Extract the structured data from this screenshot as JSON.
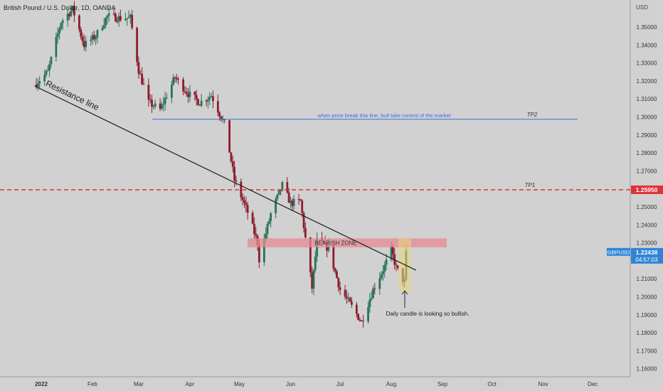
{
  "header": {
    "symbol_title": "British Pound / U.S. Dollar, 1D, OANDA",
    "currency_label": "USD"
  },
  "colors": {
    "up_candle": "#26735a",
    "down_candle": "#8c1c2c",
    "resistance_line": "#202020",
    "tp1_line": "#e0303a",
    "tp2_line": "#3a6fe0",
    "bearish_zone": "#e58a93",
    "highlight_box": "#e9d77a",
    "price_badge": "#2f84d8"
  },
  "price_tag": {
    "symbol": "GBPUSD",
    "price": "1.22438",
    "countdown": "04:57:03"
  },
  "tp1_tag": {
    "price": "1.25950"
  },
  "annotations": {
    "resistance_line_label": "Resistance line",
    "tp2_note": "when price break this line, bull take control of the market",
    "tp2_label": "TP2",
    "tp1_label": "TP1",
    "bearish_zone_label": "BEARISH ZONE",
    "candle_note": "Daily candle is looking so bullish."
  },
  "chart_data": {
    "type": "candlestick",
    "instrument": "GBPUSD",
    "timeframe": "1D",
    "source": "OANDA",
    "y_ticks": [
      "1.35000",
      "1.34000",
      "1.33000",
      "1.32000",
      "1.31000",
      "1.30000",
      "1.29000",
      "1.28000",
      "1.27000",
      "1.26000",
      "1.25000",
      "1.24000",
      "1.23000",
      "1.22000",
      "1.21000",
      "1.20000",
      "1.19000",
      "1.18000",
      "1.17000",
      "1.16000"
    ],
    "x_ticks": [
      "2022",
      "Feb",
      "Mar",
      "Apr",
      "May",
      "Jun",
      "Jul",
      "Aug",
      "Sep",
      "Oct",
      "Nov",
      "Dec"
    ],
    "ylim": [
      1.155,
      1.358
    ],
    "grid": false,
    "levels": {
      "tp1": 1.2595,
      "tp2": 1.2987,
      "bearish_zone": [
        1.2275,
        1.2325
      ],
      "last_price": 1.22438
    },
    "resistance_line": {
      "start": {
        "date": "2021-12-28",
        "price": 1.3172
      },
      "end": {
        "date": "2022-08-16",
        "price": 1.2148
      }
    },
    "price_path": [
      {
        "date": "2021-12-28",
        "price": 1.318
      },
      {
        "date": "2022-01-05",
        "price": 1.325
      },
      {
        "date": "2022-01-13",
        "price": 1.353
      },
      {
        "date": "2022-01-20",
        "price": 1.36
      },
      {
        "date": "2022-01-27",
        "price": 1.34
      },
      {
        "date": "2022-02-03",
        "price": 1.345
      },
      {
        "date": "2022-02-10",
        "price": 1.356
      },
      {
        "date": "2022-02-17",
        "price": 1.355
      },
      {
        "date": "2022-02-24",
        "price": 1.355
      },
      {
        "date": "2022-03-01",
        "price": 1.326
      },
      {
        "date": "2022-03-07",
        "price": 1.308
      },
      {
        "date": "2022-03-14",
        "price": 1.304
      },
      {
        "date": "2022-03-23",
        "price": 1.322
      },
      {
        "date": "2022-03-31",
        "price": 1.313
      },
      {
        "date": "2022-04-07",
        "price": 1.308
      },
      {
        "date": "2022-04-14",
        "price": 1.312
      },
      {
        "date": "2022-04-22",
        "price": 1.296
      },
      {
        "date": "2022-04-25",
        "price": 1.281
      },
      {
        "date": "2022-04-28",
        "price": 1.265
      },
      {
        "date": "2022-05-06",
        "price": 1.247
      },
      {
        "date": "2022-05-12",
        "price": 1.23
      },
      {
        "date": "2022-05-13",
        "price": 1.221
      },
      {
        "date": "2022-05-20",
        "price": 1.246
      },
      {
        "date": "2022-05-27",
        "price": 1.262
      },
      {
        "date": "2022-06-01",
        "price": 1.252
      },
      {
        "date": "2022-06-07",
        "price": 1.253
      },
      {
        "date": "2022-06-14",
        "price": 1.205
      },
      {
        "date": "2022-06-17",
        "price": 1.231
      },
      {
        "date": "2022-06-24",
        "price": 1.227
      },
      {
        "date": "2022-07-01",
        "price": 1.204
      },
      {
        "date": "2022-07-07",
        "price": 1.196
      },
      {
        "date": "2022-07-14",
        "price": 1.186
      },
      {
        "date": "2022-07-21",
        "price": 1.204
      },
      {
        "date": "2022-07-28",
        "price": 1.217
      },
      {
        "date": "2022-08-01",
        "price": 1.226
      },
      {
        "date": "2022-08-04",
        "price": 1.216
      },
      {
        "date": "2022-08-09",
        "price": 1.208
      },
      {
        "date": "2022-08-10",
        "price": 1.224
      }
    ]
  }
}
